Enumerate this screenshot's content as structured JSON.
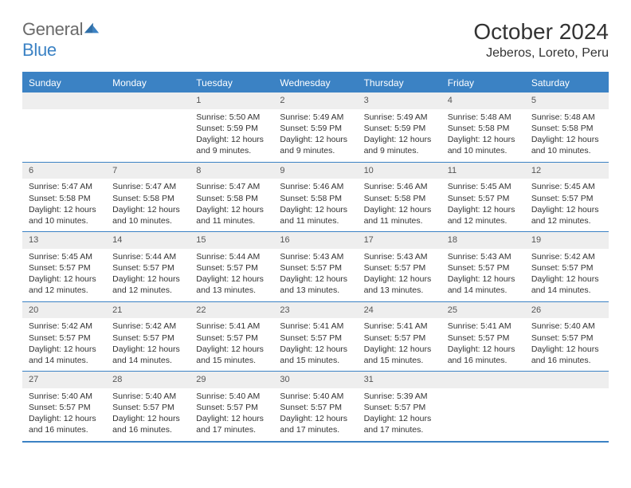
{
  "logo": {
    "text1": "General",
    "text2": "Blue",
    "color1": "#6a6a6a",
    "color2": "#3b82c4"
  },
  "title": "October 2024",
  "location": "Jeberos, Loreto, Peru",
  "colors": {
    "header_bar": "#3b82c4",
    "daynum_bg": "#eeeeee",
    "rule": "#3b82c4",
    "text": "#333333",
    "white": "#ffffff"
  },
  "typography": {
    "title_fontsize": 28,
    "location_fontsize": 16,
    "dow_fontsize": 12,
    "cell_fontsize": 10.5
  },
  "days_of_week": [
    "Sunday",
    "Monday",
    "Tuesday",
    "Wednesday",
    "Thursday",
    "Friday",
    "Saturday"
  ],
  "labels": {
    "sunrise": "Sunrise:",
    "sunset": "Sunset:",
    "daylight": "Daylight:"
  },
  "weeks": [
    [
      {
        "empty": true
      },
      {
        "empty": true
      },
      {
        "n": "1",
        "sunrise": "5:50 AM",
        "sunset": "5:59 PM",
        "daylight": "12 hours and 9 minutes."
      },
      {
        "n": "2",
        "sunrise": "5:49 AM",
        "sunset": "5:59 PM",
        "daylight": "12 hours and 9 minutes."
      },
      {
        "n": "3",
        "sunrise": "5:49 AM",
        "sunset": "5:59 PM",
        "daylight": "12 hours and 9 minutes."
      },
      {
        "n": "4",
        "sunrise": "5:48 AM",
        "sunset": "5:58 PM",
        "daylight": "12 hours and 10 minutes."
      },
      {
        "n": "5",
        "sunrise": "5:48 AM",
        "sunset": "5:58 PM",
        "daylight": "12 hours and 10 minutes."
      }
    ],
    [
      {
        "n": "6",
        "sunrise": "5:47 AM",
        "sunset": "5:58 PM",
        "daylight": "12 hours and 10 minutes."
      },
      {
        "n": "7",
        "sunrise": "5:47 AM",
        "sunset": "5:58 PM",
        "daylight": "12 hours and 10 minutes."
      },
      {
        "n": "8",
        "sunrise": "5:47 AM",
        "sunset": "5:58 PM",
        "daylight": "12 hours and 11 minutes."
      },
      {
        "n": "9",
        "sunrise": "5:46 AM",
        "sunset": "5:58 PM",
        "daylight": "12 hours and 11 minutes."
      },
      {
        "n": "10",
        "sunrise": "5:46 AM",
        "sunset": "5:58 PM",
        "daylight": "12 hours and 11 minutes."
      },
      {
        "n": "11",
        "sunrise": "5:45 AM",
        "sunset": "5:57 PM",
        "daylight": "12 hours and 12 minutes."
      },
      {
        "n": "12",
        "sunrise": "5:45 AM",
        "sunset": "5:57 PM",
        "daylight": "12 hours and 12 minutes."
      }
    ],
    [
      {
        "n": "13",
        "sunrise": "5:45 AM",
        "sunset": "5:57 PM",
        "daylight": "12 hours and 12 minutes."
      },
      {
        "n": "14",
        "sunrise": "5:44 AM",
        "sunset": "5:57 PM",
        "daylight": "12 hours and 12 minutes."
      },
      {
        "n": "15",
        "sunrise": "5:44 AM",
        "sunset": "5:57 PM",
        "daylight": "12 hours and 13 minutes."
      },
      {
        "n": "16",
        "sunrise": "5:43 AM",
        "sunset": "5:57 PM",
        "daylight": "12 hours and 13 minutes."
      },
      {
        "n": "17",
        "sunrise": "5:43 AM",
        "sunset": "5:57 PM",
        "daylight": "12 hours and 13 minutes."
      },
      {
        "n": "18",
        "sunrise": "5:43 AM",
        "sunset": "5:57 PM",
        "daylight": "12 hours and 14 minutes."
      },
      {
        "n": "19",
        "sunrise": "5:42 AM",
        "sunset": "5:57 PM",
        "daylight": "12 hours and 14 minutes."
      }
    ],
    [
      {
        "n": "20",
        "sunrise": "5:42 AM",
        "sunset": "5:57 PM",
        "daylight": "12 hours and 14 minutes."
      },
      {
        "n": "21",
        "sunrise": "5:42 AM",
        "sunset": "5:57 PM",
        "daylight": "12 hours and 14 minutes."
      },
      {
        "n": "22",
        "sunrise": "5:41 AM",
        "sunset": "5:57 PM",
        "daylight": "12 hours and 15 minutes."
      },
      {
        "n": "23",
        "sunrise": "5:41 AM",
        "sunset": "5:57 PM",
        "daylight": "12 hours and 15 minutes."
      },
      {
        "n": "24",
        "sunrise": "5:41 AM",
        "sunset": "5:57 PM",
        "daylight": "12 hours and 15 minutes."
      },
      {
        "n": "25",
        "sunrise": "5:41 AM",
        "sunset": "5:57 PM",
        "daylight": "12 hours and 16 minutes."
      },
      {
        "n": "26",
        "sunrise": "5:40 AM",
        "sunset": "5:57 PM",
        "daylight": "12 hours and 16 minutes."
      }
    ],
    [
      {
        "n": "27",
        "sunrise": "5:40 AM",
        "sunset": "5:57 PM",
        "daylight": "12 hours and 16 minutes."
      },
      {
        "n": "28",
        "sunrise": "5:40 AM",
        "sunset": "5:57 PM",
        "daylight": "12 hours and 16 minutes."
      },
      {
        "n": "29",
        "sunrise": "5:40 AM",
        "sunset": "5:57 PM",
        "daylight": "12 hours and 17 minutes."
      },
      {
        "n": "30",
        "sunrise": "5:40 AM",
        "sunset": "5:57 PM",
        "daylight": "12 hours and 17 minutes."
      },
      {
        "n": "31",
        "sunrise": "5:39 AM",
        "sunset": "5:57 PM",
        "daylight": "12 hours and 17 minutes."
      },
      {
        "empty": true
      },
      {
        "empty": true
      }
    ]
  ]
}
